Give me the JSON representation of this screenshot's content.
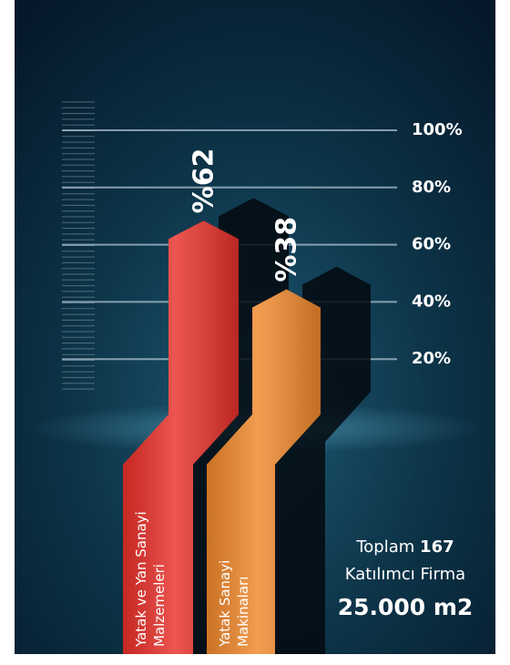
{
  "chart_data": {
    "type": "bar",
    "categories": [
      "Yatak ve Yan Sanayi Malzemeleri",
      "Yatak Sanayi Makinaları"
    ],
    "values": [
      62,
      38
    ],
    "value_labels": [
      "%62",
      "%38"
    ],
    "colors": [
      "#e8302a",
      "#f0882c"
    ],
    "ylim": [
      0,
      100
    ],
    "yticks": [
      {
        "value": 20,
        "label": "20%"
      },
      {
        "value": 40,
        "label": "40%"
      },
      {
        "value": 60,
        "label": "60%"
      },
      {
        "value": 80,
        "label": "80%"
      },
      {
        "value": 100,
        "label": "100%"
      }
    ],
    "grid": true
  },
  "info": {
    "total_prefix": "Toplam",
    "total_count": 167,
    "total_suffix": "Katılımcı Firma",
    "area": "25.000 m2"
  }
}
